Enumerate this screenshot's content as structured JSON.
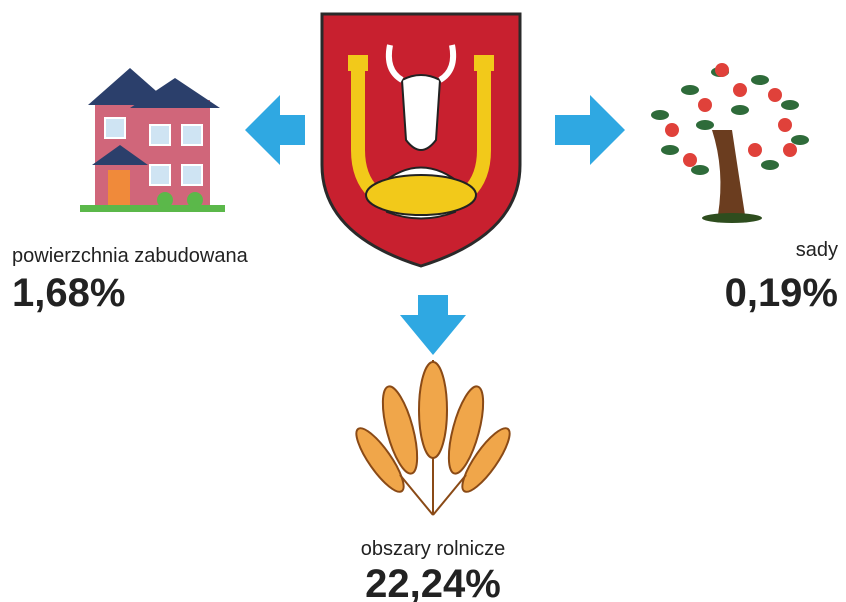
{
  "items": [
    {
      "label": "powierzchnia zabudowana",
      "value": "1,68%"
    },
    {
      "label": "sady",
      "value": "0,19%"
    },
    {
      "label": "obszary rolnicze",
      "value": "22,24%"
    }
  ]
}
